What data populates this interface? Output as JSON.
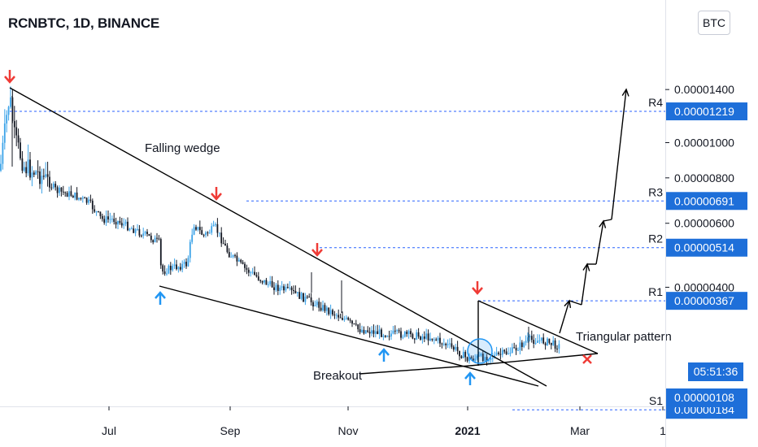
{
  "header": {
    "title": "RCNBTC, 1D, BINANCE",
    "currency_button": "BTC"
  },
  "colors": {
    "candle": "#3ba3e8",
    "bear_candle": "#131722",
    "level_line": "#2962ff",
    "label_bg": "#1e6fd9",
    "arrow_down": "#ef3b36",
    "arrow_up": "#2196f3",
    "wedge_line": "#000000"
  },
  "chart_data": {
    "type": "candlestick",
    "title": "RCNBTC, 1D, BINANCE",
    "y_axis": {
      "scale": "log",
      "tick_labels": [
        "0.00001400",
        "0.00001000",
        "0.00000800",
        "0.00000600",
        "0.00000400"
      ],
      "tick_values": [
        1.4e-05,
        1e-05,
        8e-06,
        6e-06,
        4e-06
      ]
    },
    "x_axis": {
      "tick_labels": [
        "Jul",
        "Sep",
        "Nov",
        "2021",
        "Mar",
        "1"
      ]
    },
    "price_levels": [
      {
        "name": "R4",
        "value": "0.00001219"
      },
      {
        "name": "R3",
        "value": "0.00000691"
      },
      {
        "name": "R2",
        "value": "0.00000514"
      },
      {
        "name": "R1",
        "value": "0.00000367"
      },
      {
        "name": "S1",
        "value": "0.00000184"
      }
    ],
    "last_price": "0.00000108",
    "countdown": "05:51:36",
    "annotations": [
      "Falling wedge",
      "Triangular pattern",
      "Breakout"
    ]
  }
}
